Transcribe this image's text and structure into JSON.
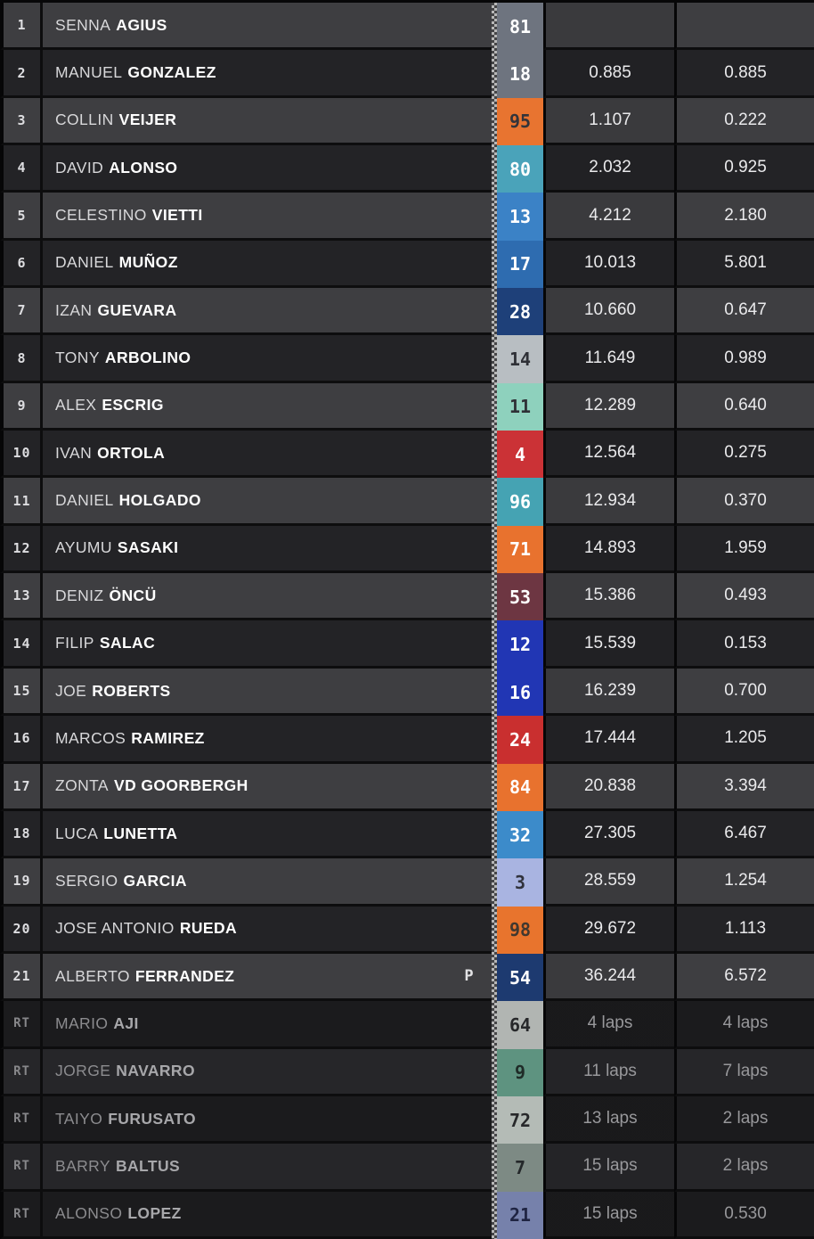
{
  "results": {
    "rows": [
      {
        "pos": "1",
        "first": "SENNA",
        "last": "AGIUS",
        "num": "81",
        "plate_bg": "#6e747f",
        "plate_fg": "#ffffff",
        "gap_leader": "",
        "gap_prev": "",
        "penalty": "",
        "retired": false
      },
      {
        "pos": "2",
        "first": "MANUEL",
        "last": "GONZALEZ",
        "num": "18",
        "plate_bg": "#6e747f",
        "plate_fg": "#ffffff",
        "gap_leader": "0.885",
        "gap_prev": "0.885",
        "penalty": "",
        "retired": false
      },
      {
        "pos": "3",
        "first": "COLLIN",
        "last": "VEIJER",
        "num": "95",
        "plate_bg": "#e87430",
        "plate_fg": "#33343a",
        "gap_leader": "1.107",
        "gap_prev": "0.222",
        "penalty": "",
        "retired": false
      },
      {
        "pos": "4",
        "first": "DAVID",
        "last": "ALONSO",
        "num": "80",
        "plate_bg": "#4aa3ba",
        "plate_fg": "#ffffff",
        "gap_leader": "2.032",
        "gap_prev": "0.925",
        "penalty": "",
        "retired": false
      },
      {
        "pos": "5",
        "first": "CELESTINO",
        "last": "VIETTI",
        "num": "13",
        "plate_bg": "#3b82c6",
        "plate_fg": "#ffffff",
        "gap_leader": "4.212",
        "gap_prev": "2.180",
        "penalty": "",
        "retired": false
      },
      {
        "pos": "6",
        "first": "DANIEL",
        "last": "MUÑOZ",
        "num": "17",
        "plate_bg": "#2e6cb0",
        "plate_fg": "#ffffff",
        "gap_leader": "10.013",
        "gap_prev": "5.801",
        "penalty": "",
        "retired": false
      },
      {
        "pos": "7",
        "first": "IZAN",
        "last": "GUEVARA",
        "num": "28",
        "plate_bg": "#1e4079",
        "plate_fg": "#ffffff",
        "gap_leader": "10.660",
        "gap_prev": "0.647",
        "penalty": "",
        "retired": false
      },
      {
        "pos": "8",
        "first": "TONY",
        "last": "ARBOLINO",
        "num": "14",
        "plate_bg": "#b8bec2",
        "plate_fg": "#2e3036",
        "gap_leader": "11.649",
        "gap_prev": "0.989",
        "penalty": "",
        "retired": false
      },
      {
        "pos": "9",
        "first": "ALEX",
        "last": "ESCRIG",
        "num": "11",
        "plate_bg": "#8ed1bd",
        "plate_fg": "#2e3036",
        "gap_leader": "12.289",
        "gap_prev": "0.640",
        "penalty": "",
        "retired": false
      },
      {
        "pos": "10",
        "first": "IVAN",
        "last": "ORTOLA",
        "num": "4",
        "plate_bg": "#cb3236",
        "plate_fg": "#ffffff",
        "gap_leader": "12.564",
        "gap_prev": "0.275",
        "penalty": "",
        "retired": false
      },
      {
        "pos": "11",
        "first": "DANIEL",
        "last": "HOLGADO",
        "num": "96",
        "plate_bg": "#45a3b3",
        "plate_fg": "#ffffff",
        "gap_leader": "12.934",
        "gap_prev": "0.370",
        "penalty": "",
        "retired": false
      },
      {
        "pos": "12",
        "first": "AYUMU",
        "last": "SASAKI",
        "num": "71",
        "plate_bg": "#e8722e",
        "plate_fg": "#ffffff",
        "gap_leader": "14.893",
        "gap_prev": "1.959",
        "penalty": "",
        "retired": false
      },
      {
        "pos": "13",
        "first": "DENIZ",
        "last": "ÖNCÜ",
        "num": "53",
        "plate_bg": "#6d3642",
        "plate_fg": "#ffffff",
        "gap_leader": "15.386",
        "gap_prev": "0.493",
        "penalty": "",
        "retired": false
      },
      {
        "pos": "14",
        "first": "FILIP",
        "last": "SALAC",
        "num": "12",
        "plate_bg": "#2136b4",
        "plate_fg": "#ffffff",
        "gap_leader": "15.539",
        "gap_prev": "0.153",
        "penalty": "",
        "retired": false
      },
      {
        "pos": "15",
        "first": "JOE",
        "last": "ROBERTS",
        "num": "16",
        "plate_bg": "#2136b4",
        "plate_fg": "#ffffff",
        "gap_leader": "16.239",
        "gap_prev": "0.700",
        "penalty": "",
        "retired": false
      },
      {
        "pos": "16",
        "first": "MARCOS",
        "last": "RAMIREZ",
        "num": "24",
        "plate_bg": "#c92f2f",
        "plate_fg": "#ffffff",
        "gap_leader": "17.444",
        "gap_prev": "1.205",
        "penalty": "",
        "retired": false
      },
      {
        "pos": "17",
        "first": "ZONTA",
        "last": "VD GOORBERGH",
        "num": "84",
        "plate_bg": "#e8722e",
        "plate_fg": "#ffffff",
        "gap_leader": "20.838",
        "gap_prev": "3.394",
        "penalty": "",
        "retired": false
      },
      {
        "pos": "18",
        "first": "LUCA",
        "last": "LUNETTA",
        "num": "32",
        "plate_bg": "#3c8bca",
        "plate_fg": "#ffffff",
        "gap_leader": "27.305",
        "gap_prev": "6.467",
        "penalty": "",
        "retired": false
      },
      {
        "pos": "19",
        "first": "SERGIO",
        "last": "GARCIA",
        "num": "3",
        "plate_bg": "#a9b4e1",
        "plate_fg": "#30323c",
        "gap_leader": "28.559",
        "gap_prev": "1.254",
        "penalty": "",
        "retired": false
      },
      {
        "pos": "20",
        "first": "JOSE ANTONIO",
        "last": "RUEDA",
        "num": "98",
        "plate_bg": "#e8742d",
        "plate_fg": "#41382f",
        "gap_leader": "29.672",
        "gap_prev": "1.113",
        "penalty": "",
        "retired": false
      },
      {
        "pos": "21",
        "first": "ALBERTO",
        "last": "FERRANDEZ",
        "num": "54",
        "plate_bg": "#1d3a70",
        "plate_fg": "#ffffff",
        "gap_leader": "36.244",
        "gap_prev": "6.572",
        "penalty": "P",
        "retired": false
      },
      {
        "pos": "RT",
        "first": "MARIO",
        "last": "AJI",
        "num": "64",
        "plate_bg": "#b1b5b2",
        "plate_fg": "#27282a",
        "gap_leader": "4 laps",
        "gap_prev": "4 laps",
        "penalty": "",
        "retired": true
      },
      {
        "pos": "RT",
        "first": "JORGE",
        "last": "NAVARRO",
        "num": "9",
        "plate_bg": "#5e9380",
        "plate_fg": "#1f2b27",
        "gap_leader": "11 laps",
        "gap_prev": "7 laps",
        "penalty": "",
        "retired": true
      },
      {
        "pos": "RT",
        "first": "TAIYO",
        "last": "FURUSATO",
        "num": "72",
        "plate_bg": "#b4bbb6",
        "plate_fg": "#27282a",
        "gap_leader": "13 laps",
        "gap_prev": "2 laps",
        "penalty": "",
        "retired": true
      },
      {
        "pos": "RT",
        "first": "BARRY",
        "last": "BALTUS",
        "num": "7",
        "plate_bg": "#7d8a84",
        "plate_fg": "#24282a",
        "gap_leader": "15 laps",
        "gap_prev": "2 laps",
        "penalty": "",
        "retired": true
      },
      {
        "pos": "RT",
        "first": "ALONSO",
        "last": "LOPEZ",
        "num": "21",
        "plate_bg": "#7681ab",
        "plate_fg": "#1f2442",
        "gap_leader": "15 laps",
        "gap_prev": "0.530",
        "penalty": "",
        "retired": true
      }
    ],
    "accent_colors": {
      "row_light": "#3e3e41",
      "row_dark": "#232326",
      "rt_row_dark": "#1b1b1d",
      "rt_row_light": "#262629",
      "checker_light": "#b7b7b7",
      "checker_dark": "#454547"
    }
  }
}
